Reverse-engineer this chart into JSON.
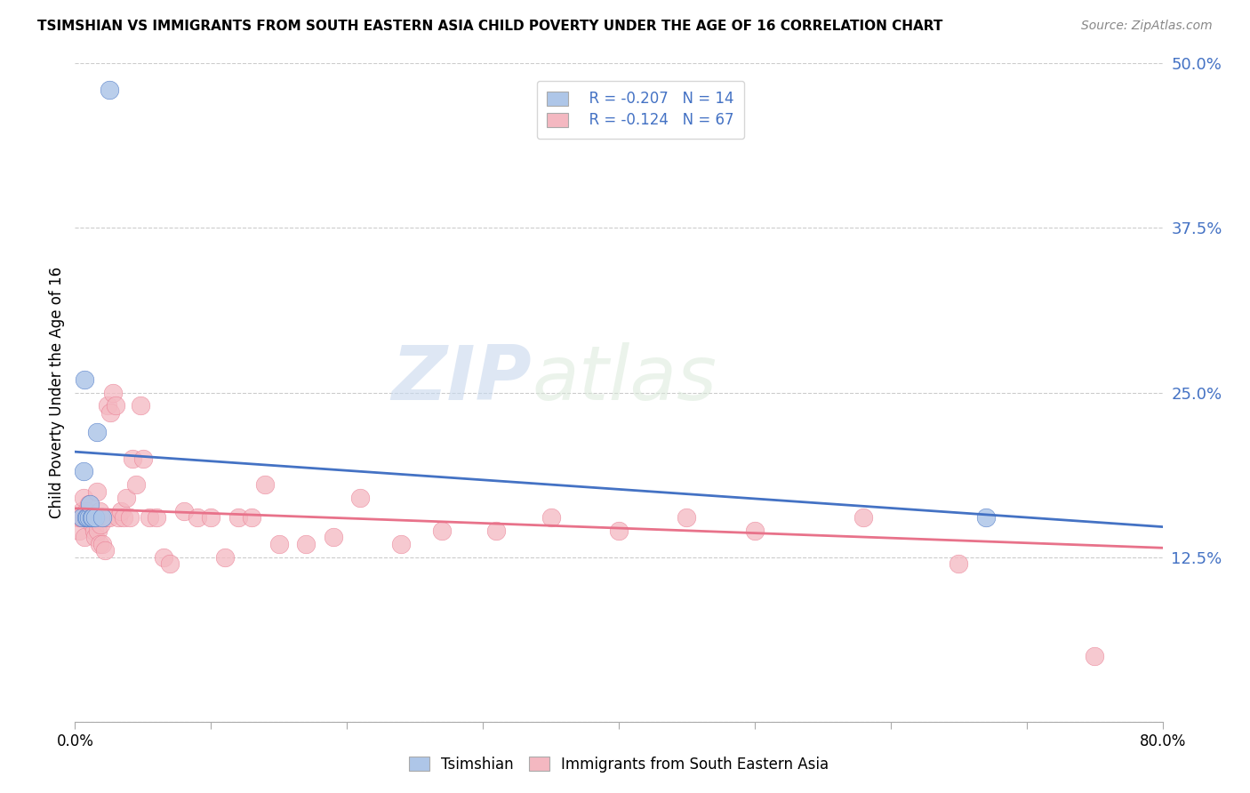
{
  "title": "TSIMSHIAN VS IMMIGRANTS FROM SOUTH EASTERN ASIA CHILD POVERTY UNDER THE AGE OF 16 CORRELATION CHART",
  "source": "Source: ZipAtlas.com",
  "ylabel": "Child Poverty Under the Age of 16",
  "xlabel_tsimshian": "Tsimshian",
  "xlabel_immigrants": "Immigrants from South Eastern Asia",
  "xmin": 0.0,
  "xmax": 0.8,
  "ymin": 0.0,
  "ymax": 0.5,
  "yticks": [
    0.0,
    0.125,
    0.25,
    0.375,
    0.5
  ],
  "ytick_labels": [
    "",
    "12.5%",
    "25.0%",
    "37.5%",
    "50.0%"
  ],
  "xticks": [
    0.0,
    0.1,
    0.2,
    0.3,
    0.4,
    0.5,
    0.6,
    0.7,
    0.8
  ],
  "xtick_labels": [
    "0.0%",
    "",
    "",
    "",
    "",
    "",
    "",
    "",
    "80.0%"
  ],
  "legend_R1": "R = -0.207",
  "legend_N1": "N = 14",
  "legend_R2": "R = -0.124",
  "legend_N2": "N = 67",
  "tsimshian_color": "#aec6e8",
  "immigrants_color": "#f4b8c1",
  "tsimshian_line_color": "#4472c4",
  "immigrants_line_color": "#e8728a",
  "background_color": "#ffffff",
  "grid_color": "#cccccc",
  "watermark_zip": "ZIP",
  "watermark_atlas": "atlas",
  "tsimshian_x": [
    0.005,
    0.006,
    0.007,
    0.008,
    0.009,
    0.01,
    0.011,
    0.012,
    0.013,
    0.015,
    0.016,
    0.02,
    0.025,
    0.67
  ],
  "tsimshian_y": [
    0.155,
    0.19,
    0.26,
    0.155,
    0.155,
    0.155,
    0.165,
    0.155,
    0.155,
    0.155,
    0.22,
    0.155,
    0.48,
    0.155
  ],
  "immigrants_x": [
    0.002,
    0.003,
    0.004,
    0.005,
    0.005,
    0.006,
    0.006,
    0.007,
    0.007,
    0.008,
    0.008,
    0.009,
    0.009,
    0.01,
    0.01,
    0.011,
    0.012,
    0.013,
    0.014,
    0.015,
    0.016,
    0.017,
    0.018,
    0.018,
    0.019,
    0.02,
    0.022,
    0.023,
    0.024,
    0.025,
    0.026,
    0.028,
    0.03,
    0.032,
    0.034,
    0.036,
    0.038,
    0.04,
    0.042,
    0.045,
    0.048,
    0.05,
    0.055,
    0.06,
    0.065,
    0.07,
    0.08,
    0.09,
    0.1,
    0.11,
    0.12,
    0.13,
    0.14,
    0.15,
    0.17,
    0.19,
    0.21,
    0.24,
    0.27,
    0.31,
    0.35,
    0.4,
    0.45,
    0.5,
    0.58,
    0.65,
    0.75
  ],
  "immigrants_y": [
    0.155,
    0.145,
    0.155,
    0.155,
    0.16,
    0.155,
    0.17,
    0.14,
    0.155,
    0.155,
    0.16,
    0.155,
    0.155,
    0.155,
    0.165,
    0.155,
    0.155,
    0.15,
    0.145,
    0.14,
    0.175,
    0.145,
    0.135,
    0.16,
    0.15,
    0.135,
    0.13,
    0.155,
    0.24,
    0.155,
    0.235,
    0.25,
    0.24,
    0.155,
    0.16,
    0.155,
    0.17,
    0.155,
    0.2,
    0.18,
    0.24,
    0.2,
    0.155,
    0.155,
    0.125,
    0.12,
    0.16,
    0.155,
    0.155,
    0.125,
    0.155,
    0.155,
    0.18,
    0.135,
    0.135,
    0.14,
    0.17,
    0.135,
    0.145,
    0.145,
    0.155,
    0.145,
    0.155,
    0.145,
    0.155,
    0.12,
    0.05
  ],
  "blue_line_x": [
    0.0,
    0.8
  ],
  "blue_line_y": [
    0.205,
    0.148
  ],
  "pink_line_x": [
    0.0,
    0.8
  ],
  "pink_line_y": [
    0.162,
    0.132
  ]
}
